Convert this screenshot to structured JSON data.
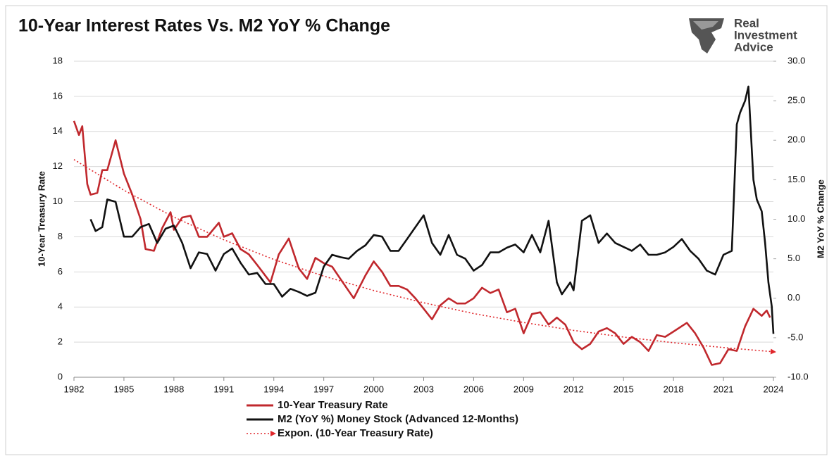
{
  "chart_data": {
    "type": "line",
    "title": "10-Year Interest Rates Vs. M2 YoY % Change",
    "brand": [
      "Real",
      "Investment",
      "Advice"
    ],
    "y_label": "10-Year Treasury Rate",
    "y2_label": "M2 YoY % Change",
    "xlim": [
      1982,
      2024
    ],
    "xticks": [
      1982,
      1985,
      1988,
      1991,
      1994,
      1997,
      2000,
      2003,
      2006,
      2009,
      2012,
      2015,
      2018,
      2021,
      2024
    ],
    "ylim": [
      0,
      18
    ],
    "yticks": [
      0,
      2,
      4,
      6,
      8,
      10,
      12,
      14,
      16,
      18
    ],
    "y2lim": [
      -10,
      30
    ],
    "y2ticks": [
      {
        "value": -10,
        "label": "-10.0"
      },
      {
        "value": -5,
        "label": "-5.0"
      },
      {
        "value": 0,
        "label": "0.0"
      },
      {
        "value": 5,
        "label": "5.0"
      },
      {
        "value": 10,
        "label": "10.0"
      },
      {
        "value": 15,
        "label": "15.0"
      },
      {
        "value": 20,
        "label": "20.0"
      },
      {
        "value": 25,
        "label": "25.0"
      },
      {
        "value": 30,
        "label": "30.0"
      }
    ],
    "grid": true,
    "series": [
      {
        "name": "10-Year Treasury Rate",
        "color": "#c0282d",
        "style": "solid",
        "x": [
          1982.0,
          1982.3,
          1982.5,
          1982.8,
          1983.0,
          1983.4,
          1983.7,
          1984.0,
          1984.5,
          1985.0,
          1985.5,
          1986.0,
          1986.3,
          1986.8,
          1987.3,
          1987.8,
          1988.0,
          1988.5,
          1989.0,
          1989.5,
          1990.0,
          1990.7,
          1991.0,
          1991.5,
          1992.0,
          1992.5,
          1993.0,
          1993.8,
          1994.3,
          1994.9,
          1995.5,
          1996.0,
          1996.5,
          1997.0,
          1997.5,
          1998.0,
          1998.8,
          1999.5,
          2000.0,
          2000.5,
          2001.0,
          2001.5,
          2002.0,
          2002.5,
          2003.0,
          2003.5,
          2004.0,
          2004.5,
          2005.0,
          2005.5,
          2006.0,
          2006.5,
          2007.0,
          2007.5,
          2008.0,
          2008.5,
          2009.0,
          2009.5,
          2010.0,
          2010.5,
          2011.0,
          2011.5,
          2012.0,
          2012.5,
          2013.0,
          2013.5,
          2014.0,
          2014.5,
          2015.0,
          2015.5,
          2016.0,
          2016.5,
          2017.0,
          2017.5,
          2018.0,
          2018.8,
          2019.3,
          2019.8,
          2020.3,
          2020.8,
          2021.3,
          2021.8,
          2022.3,
          2022.8,
          2023.3,
          2023.6,
          2023.8
        ],
        "values": [
          14.6,
          13.8,
          14.3,
          11.0,
          10.4,
          10.5,
          11.8,
          11.8,
          13.5,
          11.6,
          10.4,
          9.0,
          7.3,
          7.2,
          8.5,
          9.4,
          8.4,
          9.1,
          9.2,
          8.0,
          8.0,
          8.8,
          8.0,
          8.2,
          7.3,
          7.0,
          6.4,
          5.4,
          7.0,
          7.9,
          6.2,
          5.6,
          6.8,
          6.5,
          6.3,
          5.6,
          4.5,
          5.8,
          6.6,
          6.0,
          5.2,
          5.2,
          5.0,
          4.5,
          3.9,
          3.3,
          4.1,
          4.5,
          4.2,
          4.2,
          4.5,
          5.1,
          4.8,
          5.0,
          3.7,
          3.9,
          2.5,
          3.6,
          3.7,
          3.0,
          3.4,
          3.0,
          2.0,
          1.6,
          1.9,
          2.6,
          2.8,
          2.5,
          1.9,
          2.3,
          2.0,
          1.5,
          2.4,
          2.3,
          2.6,
          3.1,
          2.5,
          1.7,
          0.7,
          0.8,
          1.6,
          1.5,
          2.9,
          3.9,
          3.5,
          3.8,
          3.4
        ]
      },
      {
        "name": "M2 (YoY %) Money Stock (Advanced 12-Months)",
        "color": "#111111",
        "style": "solid",
        "axis": "y2",
        "x": [
          1983.0,
          1983.3,
          1983.7,
          1984.0,
          1984.5,
          1985.0,
          1985.5,
          1986.0,
          1986.5,
          1987.0,
          1987.5,
          1988.0,
          1988.5,
          1989.0,
          1989.5,
          1990.0,
          1990.5,
          1991.0,
          1991.5,
          1992.0,
          1992.5,
          1993.0,
          1993.5,
          1994.0,
          1994.5,
          1995.0,
          1995.5,
          1996.0,
          1996.5,
          1997.0,
          1997.5,
          1998.0,
          1998.5,
          1999.0,
          1999.5,
          2000.0,
          2000.5,
          2001.0,
          2001.5,
          2002.0,
          2002.5,
          2003.0,
          2003.5,
          2004.0,
          2004.5,
          2005.0,
          2005.5,
          2006.0,
          2006.5,
          2007.0,
          2007.5,
          2008.0,
          2008.5,
          2009.0,
          2009.5,
          2010.0,
          2010.5,
          2011.0,
          2011.3,
          2011.8,
          2012.0,
          2012.5,
          2013.0,
          2013.5,
          2014.0,
          2014.5,
          2015.0,
          2015.5,
          2016.0,
          2016.5,
          2017.0,
          2017.5,
          2018.0,
          2018.5,
          2019.0,
          2019.5,
          2020.0,
          2020.5,
          2021.0,
          2021.5,
          2021.8,
          2022.0,
          2022.3,
          2022.5,
          2022.8,
          2023.0,
          2023.3,
          2023.5,
          2023.7,
          2023.9,
          2024.0
        ],
        "values": [
          10.0,
          8.5,
          9.0,
          12.5,
          12.2,
          7.8,
          7.8,
          9.0,
          9.4,
          7.0,
          8.8,
          9.2,
          7.0,
          3.8,
          5.8,
          5.6,
          3.5,
          5.6,
          6.3,
          4.5,
          3.0,
          3.2,
          1.8,
          1.8,
          0.2,
          1.2,
          0.8,
          0.3,
          0.7,
          4.0,
          5.5,
          5.2,
          5.0,
          6.0,
          6.7,
          8.0,
          7.8,
          6.0,
          6.0,
          7.5,
          9.0,
          10.5,
          7.0,
          5.5,
          8.0,
          5.5,
          5.0,
          3.5,
          4.2,
          5.8,
          5.8,
          6.4,
          6.8,
          5.8,
          8.0,
          5.8,
          9.8,
          2.0,
          0.5,
          2.0,
          1.0,
          9.8,
          10.5,
          7.0,
          8.2,
          7.0,
          6.5,
          6.0,
          6.8,
          5.5,
          5.5,
          5.8,
          6.5,
          7.5,
          6.0,
          5.0,
          3.5,
          3.0,
          5.5,
          6.0,
          22.0,
          23.5,
          25.0,
          26.8,
          15.0,
          12.5,
          11.0,
          7.0,
          2.0,
          -1.0,
          -4.5
        ]
      },
      {
        "name": "Expon. (10-Year Treasury Rate)",
        "color": "#e0262b",
        "style": "dotted",
        "x": [
          1982,
          1985,
          1988,
          1991,
          1994,
          1997,
          2000,
          2003,
          2006,
          2009,
          2012,
          2015,
          2018,
          2021,
          2024
        ],
        "values": [
          12.4,
          10.65,
          9.12,
          7.83,
          6.71,
          5.76,
          4.94,
          4.24,
          3.63,
          3.12,
          2.67,
          2.29,
          1.97,
          1.69,
          1.45
        ]
      }
    ]
  }
}
